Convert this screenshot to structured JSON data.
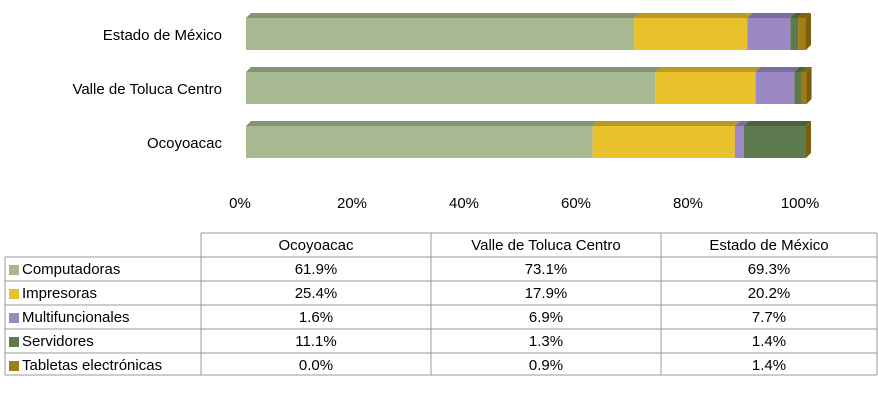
{
  "chart_data": {
    "type": "bar",
    "orientation": "horizontal",
    "stacked": "percent",
    "categories": [
      "Ocoyoacac",
      "Valle de Toluca Centro",
      "Estado de México"
    ],
    "series": [
      {
        "name": "Computadoras",
        "color": "#a6b991",
        "values": [
          61.9,
          73.1,
          69.3
        ],
        "value_labels": [
          "61.9%",
          "73.1%",
          "69.3%"
        ]
      },
      {
        "name": "Impresoras",
        "color": "#e9c12b",
        "values": [
          25.4,
          17.9,
          20.2
        ],
        "value_labels": [
          "25.4%",
          "17.9%",
          "20.2%"
        ]
      },
      {
        "name": "Multifuncionales",
        "color": "#9b88c5",
        "values": [
          1.6,
          6.9,
          7.7
        ],
        "value_labels": [
          "1.6%",
          "6.9%",
          "7.7%"
        ]
      },
      {
        "name": "Servidores",
        "color": "#5e7a4f",
        "values": [
          11.1,
          1.3,
          1.4
        ],
        "value_labels": [
          "11.1%",
          "1.3%",
          "1.4%"
        ]
      },
      {
        "name": "Tabletas electrónicas",
        "color": "#a17d12",
        "values": [
          0.0,
          0.9,
          1.4
        ],
        "value_labels": [
          "0.0%",
          "0.9%",
          "1.4%"
        ]
      }
    ],
    "xlim": [
      0,
      100
    ],
    "xticks": [
      {
        "value": 0,
        "label": "0%"
      },
      {
        "value": 20,
        "label": "20%"
      },
      {
        "value": 40,
        "label": "40%"
      },
      {
        "value": 60,
        "label": "60%"
      },
      {
        "value": 80,
        "label": "80%"
      },
      {
        "value": 100,
        "label": "100%"
      }
    ],
    "data_table": true
  }
}
